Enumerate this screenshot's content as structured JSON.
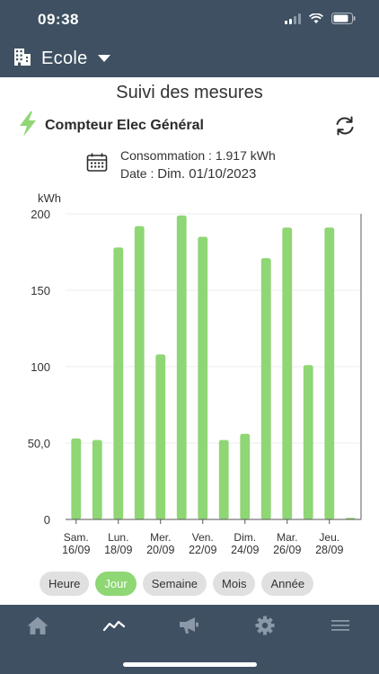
{
  "status_bar": {
    "time": "09:38"
  },
  "header": {
    "site_name": "Ecole"
  },
  "page": {
    "title": "Suivi des mesures"
  },
  "meter": {
    "name": "Compteur Elec Général",
    "consumption": "Consommation : 1.917 kWh",
    "date_label": "Date : ",
    "date_value": "Dim. 01/10/2023"
  },
  "chart_data": {
    "type": "bar",
    "ylabel": "kWh",
    "ylim": [
      0,
      200
    ],
    "yticks": [
      "0",
      "50,0",
      "100",
      "150",
      "200"
    ],
    "x": [
      "16/09",
      "17/09",
      "18/09",
      "19/09",
      "20/09",
      "21/09",
      "22/09",
      "23/09",
      "24/09",
      "25/09",
      "26/09",
      "27/09",
      "28/09",
      "29/09"
    ],
    "values": [
      53,
      52,
      178,
      192,
      108,
      199,
      185,
      52,
      56,
      171,
      191,
      101,
      191,
      1
    ],
    "xtick_labels": [
      {
        "day": "Sam.",
        "date": "16/09"
      },
      {
        "day": "Lun.",
        "date": "18/09"
      },
      {
        "day": "Mer.",
        "date": "20/09"
      },
      {
        "day": "Ven.",
        "date": "22/09"
      },
      {
        "day": "Dim.",
        "date": "24/09"
      },
      {
        "day": "Mar.",
        "date": "26/09"
      },
      {
        "day": "Jeu.",
        "date": "28/09"
      }
    ],
    "color": "#8fd675",
    "grid": true
  },
  "period_tabs": [
    {
      "label": "Heure",
      "active": false
    },
    {
      "label": "Jour",
      "active": true
    },
    {
      "label": "Semaine",
      "active": false
    },
    {
      "label": "Mois",
      "active": false
    },
    {
      "label": "Année",
      "active": false
    }
  ],
  "tab_bar": {
    "items": [
      {
        "icon": "home-icon"
      },
      {
        "icon": "chart-line-icon",
        "active": true
      },
      {
        "icon": "megaphone-icon"
      },
      {
        "icon": "gear-icon"
      },
      {
        "icon": "menu-icon"
      }
    ]
  },
  "colors": {
    "header_bg": "#3e5062",
    "accent_green": "#8fd675",
    "tab_inactive": "#e0e0e0"
  }
}
